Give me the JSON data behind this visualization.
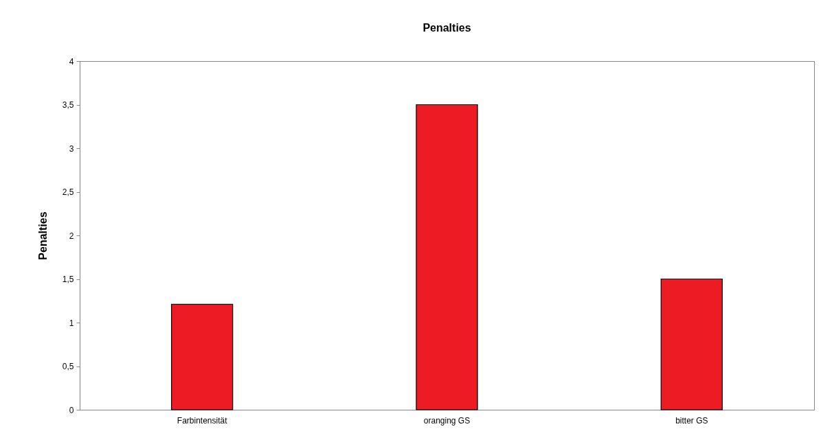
{
  "chart_data": {
    "type": "bar",
    "title": "Penalties",
    "ylabel": "Penalties",
    "categories": [
      "Farbintensität",
      "oranging GS",
      "bitter GS"
    ],
    "values": [
      1.21,
      3.5,
      1.5
    ],
    "color": "#ed1c24",
    "ylim": [
      0,
      4
    ],
    "yticks": [
      0,
      {
        "value": 0.5,
        "label": "0,5"
      },
      1,
      {
        "value": 1.5,
        "label": "1,5"
      },
      2,
      {
        "value": 2.5,
        "label": "2,5"
      },
      3,
      {
        "value": 3.5,
        "label": "3,5"
      },
      4
    ],
    "grid": false
  }
}
